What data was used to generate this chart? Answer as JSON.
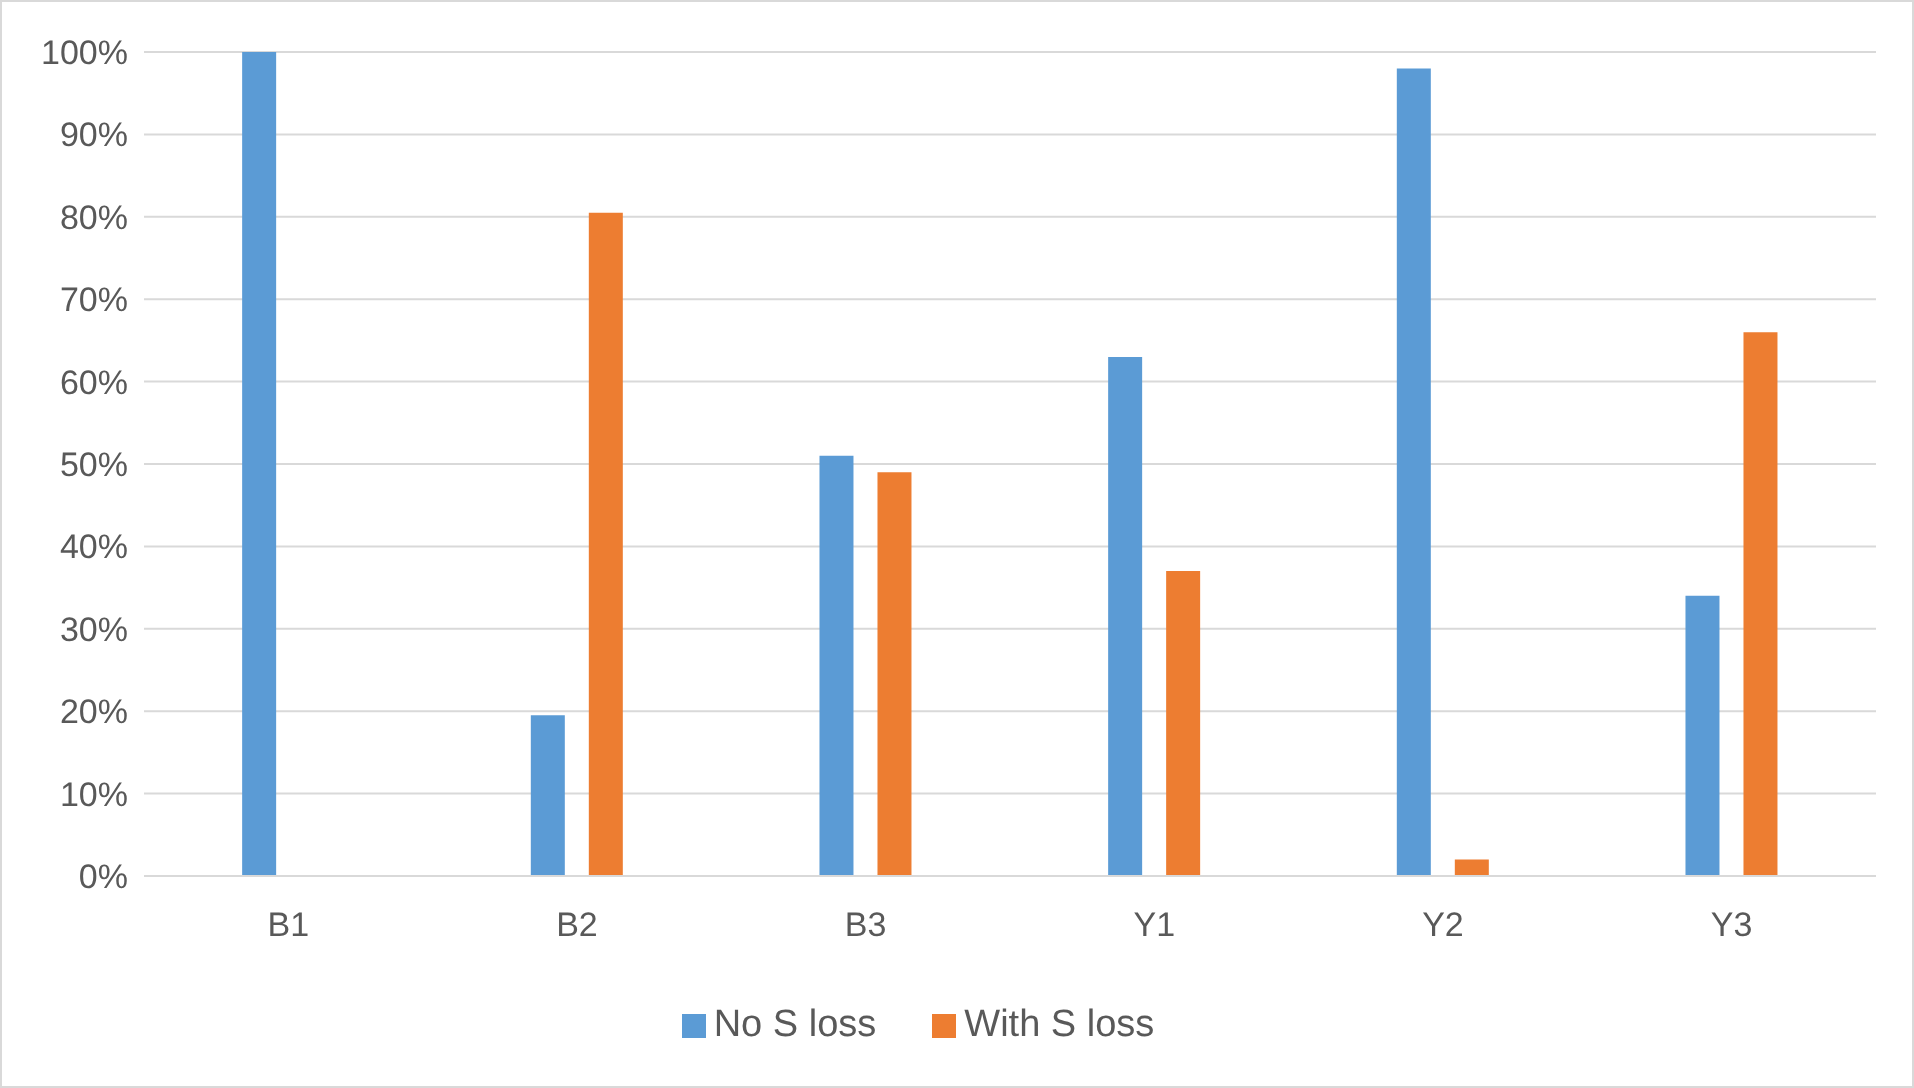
{
  "chart_data": {
    "type": "bar",
    "categories": [
      "B1",
      "B2",
      "B3",
      "Y1",
      "Y2",
      "Y3"
    ],
    "series": [
      {
        "name": "No S loss",
        "color": "#5b9bd5",
        "values": [
          100,
          19.5,
          51,
          63,
          98,
          34
        ]
      },
      {
        "name": "With S loss",
        "color": "#ed7d31",
        "values": [
          0,
          80.5,
          49,
          37,
          2,
          66
        ]
      }
    ],
    "ylim": [
      0,
      100
    ],
    "yticks": [
      {
        "value": 0,
        "label": "0%"
      },
      {
        "value": 10,
        "label": "10%"
      },
      {
        "value": 20,
        "label": "20%"
      },
      {
        "value": 30,
        "label": "30%"
      },
      {
        "value": 40,
        "label": "40%"
      },
      {
        "value": 50,
        "label": "50%"
      },
      {
        "value": 60,
        "label": "60%"
      },
      {
        "value": 70,
        "label": "70%"
      },
      {
        "value": 80,
        "label": "80%"
      },
      {
        "value": 90,
        "label": "90%"
      },
      {
        "value": 100,
        "label": "100%"
      }
    ],
    "grid": "y",
    "legend": "bottom"
  }
}
